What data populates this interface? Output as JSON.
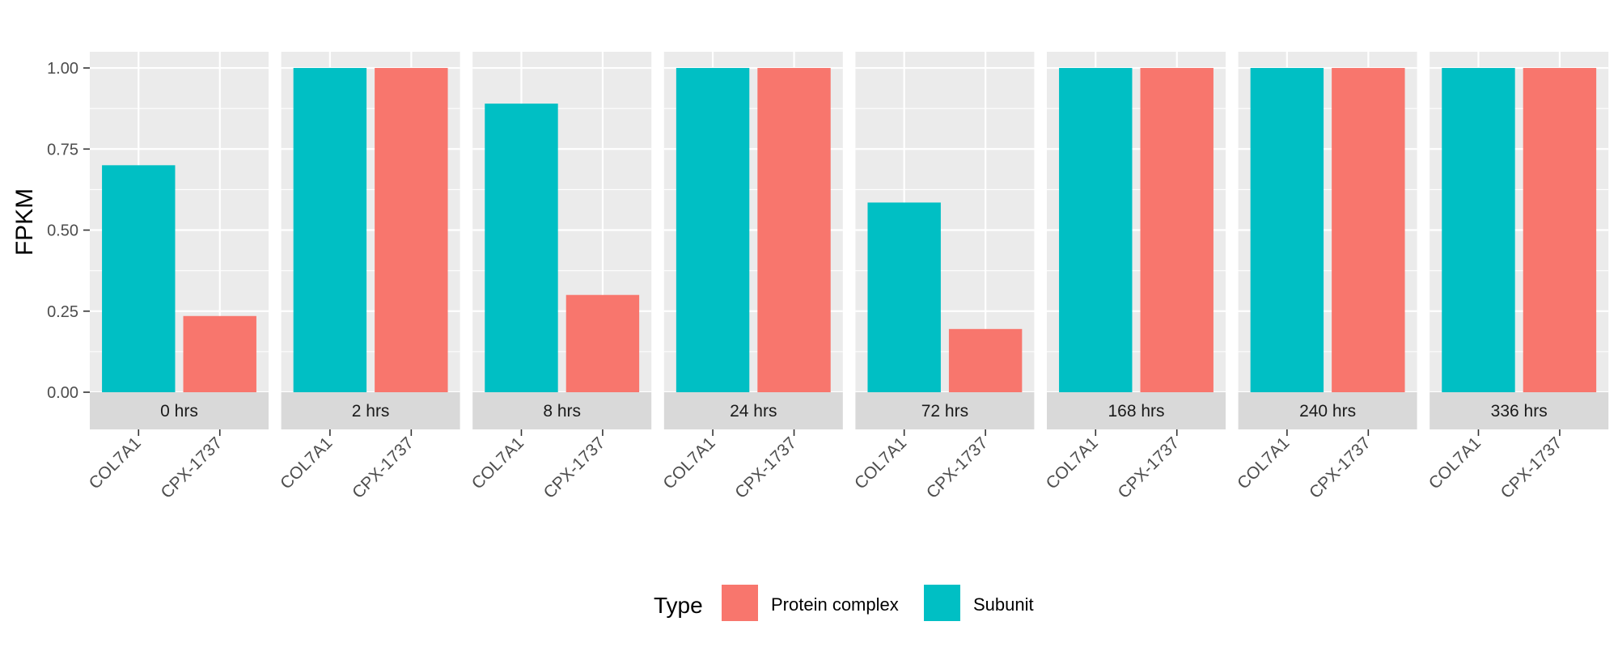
{
  "chart_data": {
    "type": "bar",
    "facet_variable": "time",
    "facets": [
      "0 hrs",
      "2 hrs",
      "8 hrs",
      "24 hrs",
      "72 hrs",
      "168 hrs",
      "240 hrs",
      "336 hrs"
    ],
    "categories": [
      "COL7A1",
      "CPX-1737"
    ],
    "category_type": [
      "Subunit",
      "Protein complex"
    ],
    "values": [
      [
        0.7,
        0.235
      ],
      [
        1.0,
        1.0
      ],
      [
        0.89,
        0.3
      ],
      [
        1.0,
        1.0
      ],
      [
        0.585,
        0.195
      ],
      [
        1.0,
        1.0
      ],
      [
        1.0,
        1.0
      ],
      [
        1.0,
        1.0
      ]
    ],
    "ylabel": "FPKM",
    "ylim": [
      -0.0,
      1.05
    ],
    "yticks": [
      0,
      0.25,
      0.5,
      0.75,
      1.0
    ],
    "ytick_labels": [
      "0.00",
      "0.25",
      "0.50",
      "0.75",
      "1.00"
    ],
    "grid": true,
    "legend": {
      "title": "Type",
      "position": "bottom",
      "entries": [
        {
          "label": "Protein complex",
          "color": "#F8766D"
        },
        {
          "label": "Subunit",
          "color": "#00BFC4"
        }
      ]
    },
    "colors": {
      "Protein complex": "#F8766D",
      "Subunit": "#00BFC4",
      "panel_bg": "#EBEBEB",
      "strip_bg": "#D9D9D9",
      "grid": "#FFFFFF"
    }
  }
}
